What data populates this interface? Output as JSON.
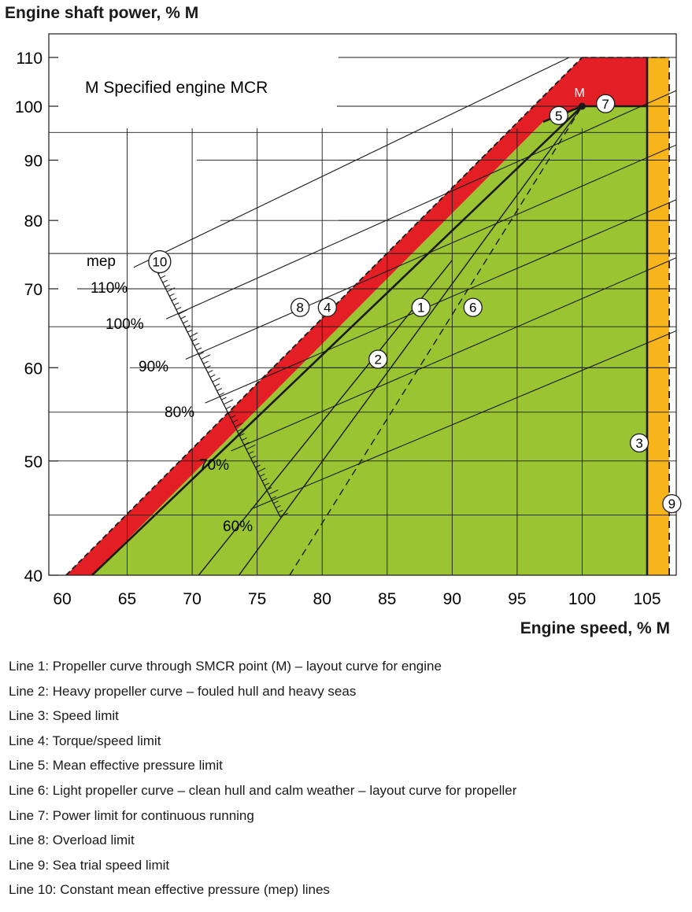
{
  "chart_data": {
    "type": "line",
    "title": "Engine shaft power, % M",
    "xlabel": "Engine speed, % M",
    "ylabel": "Engine shaft power, % M",
    "y_scale": "log",
    "xlim": [
      60,
      108
    ],
    "ylim": [
      40,
      114
    ],
    "x_ticks": [
      60,
      65,
      70,
      75,
      80,
      85,
      90,
      95,
      100,
      105
    ],
    "y_ticks": [
      40,
      50,
      60,
      70,
      80,
      90,
      100,
      110
    ],
    "note": "M  Specified engine MCR",
    "point_label": "M",
    "mep_label": "mep",
    "mep_ticks": [
      "110%",
      "100%",
      "90%",
      "80%",
      "70%",
      "60%"
    ],
    "colors": {
      "overload_zone": "#e31e24",
      "service_zone": "#9ac432",
      "sea_trial_zone": "#f7b51b",
      "line": "#1a1a1a"
    },
    "mep_lines": [
      {
        "mep": 110,
        "x1": 65.5,
        "y1": 73,
        "x2": 99,
        "y2": 110
      },
      {
        "mep": 100,
        "x1": 68,
        "y1": 66,
        "x2": 108,
        "y2": 104
      },
      {
        "mep": 90,
        "x1": 69.5,
        "y1": 61,
        "x2": 108,
        "y2": 93.5
      },
      {
        "mep": 80,
        "x1": 71,
        "y1": 56,
        "x2": 108,
        "y2": 84
      },
      {
        "mep": 70,
        "x1": 73,
        "y1": 51,
        "x2": 108,
        "y2": 75
      },
      {
        "mep": 60,
        "x1": 74.5,
        "y1": 45.5,
        "x2": 108,
        "y2": 65
      }
    ],
    "series": [
      {
        "line": 1,
        "points": [
          [
            73.6,
            40
          ],
          [
            100,
            100
          ]
        ]
      },
      {
        "line": 2,
        "points": [
          [
            70.5,
            40
          ],
          [
            90,
            74
          ]
        ]
      },
      {
        "line": 3,
        "points": [
          [
            105,
            40
          ],
          [
            105,
            110
          ]
        ]
      },
      {
        "line": 4,
        "points": [
          [
            62.3,
            40
          ],
          [
            100,
            100
          ]
        ]
      },
      {
        "line": 5,
        "points": [
          [
            97,
            97
          ],
          [
            100,
            100
          ]
        ]
      },
      {
        "line": 6,
        "points": [
          [
            77.5,
            40
          ],
          [
            100,
            100
          ]
        ]
      },
      {
        "line": 7,
        "points": [
          [
            100,
            100
          ],
          [
            105,
            100
          ]
        ]
      },
      {
        "line": 8,
        "points": [
          [
            60.3,
            40
          ],
          [
            100,
            110
          ]
        ]
      },
      {
        "line": 9,
        "points": [
          [
            106.7,
            40
          ],
          [
            106.7,
            110
          ]
        ]
      },
      {
        "line": 10,
        "points": [
          [
            65.5,
            73
          ],
          [
            99,
            110
          ]
        ]
      }
    ],
    "markers": [
      {
        "label": "1",
        "x": 87.6,
        "y": 67.5
      },
      {
        "label": "2",
        "x": 84.3,
        "y": 61
      },
      {
        "label": "3",
        "x": 104.4,
        "y": 51.8
      },
      {
        "label": "4",
        "x": 80.4,
        "y": 67.5
      },
      {
        "label": "5",
        "x": 98.2,
        "y": 98.2
      },
      {
        "label": "6",
        "x": 91.6,
        "y": 67.5
      },
      {
        "label": "7",
        "x": 101.8,
        "y": 100.5
      },
      {
        "label": "8",
        "x": 78.3,
        "y": 67.5
      },
      {
        "label": "9",
        "x": 106.9,
        "y": 46
      },
      {
        "label": "10",
        "x": 67.5,
        "y": 73.8
      }
    ]
  },
  "legend": [
    "Line 1: Propeller curve through SMCR point (M) – layout curve for engine",
    "Line 2: Heavy propeller curve – fouled hull and heavy seas",
    "Line 3: Speed limit",
    "Line 4: Torque/speed limit",
    "Line 5: Mean effective pressure limit",
    "Line 6: Light propeller curve – clean hull and calm weather – layout curve for propeller",
    "Line 7: Power limit for continuous running",
    "Line 8: Overload limit",
    "Line 9: Sea trial speed limit",
    "Line 10: Constant mean effective pressure (mep) lines"
  ]
}
